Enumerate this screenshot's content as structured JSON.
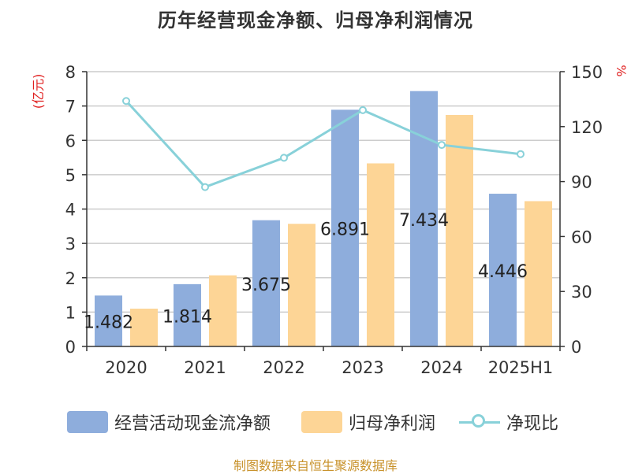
{
  "chart_data": {
    "type": "bar",
    "title": "历年经营现金净额、归母净利润情况",
    "categories": [
      "2020",
      "2021",
      "2022",
      "2023",
      "2024",
      "2025H1"
    ],
    "series": [
      {
        "name": "经营活动现金流净额",
        "kind": "bar",
        "axis": "left",
        "color": "#8eaddc",
        "values": [
          1.482,
          1.814,
          3.675,
          6.891,
          7.434,
          4.446
        ],
        "labels": [
          "1.482",
          "1.814",
          "3.675",
          "6.891",
          "7.434",
          "4.446"
        ]
      },
      {
        "name": "归母净利润",
        "kind": "bar",
        "axis": "left",
        "color": "#fdd596",
        "values": [
          1.1,
          2.07,
          3.57,
          5.33,
          6.74,
          4.23
        ]
      },
      {
        "name": "净现比",
        "kind": "line",
        "axis": "right",
        "color": "#88d1d9",
        "values": [
          134,
          87,
          103,
          129,
          110,
          105
        ]
      }
    ],
    "y_left": {
      "label": "(亿元)",
      "min": 0,
      "max": 8,
      "ticks": [
        "0",
        "1",
        "2",
        "3",
        "4",
        "5",
        "6",
        "7",
        "8"
      ]
    },
    "y_right": {
      "label": "%",
      "min": 0,
      "max": 150,
      "ticks": [
        "0",
        "30",
        "60",
        "90",
        "120",
        "150"
      ]
    },
    "grid": true,
    "legend_position": "bottom"
  },
  "source_note": "制图数据来自恒生聚源数据库"
}
